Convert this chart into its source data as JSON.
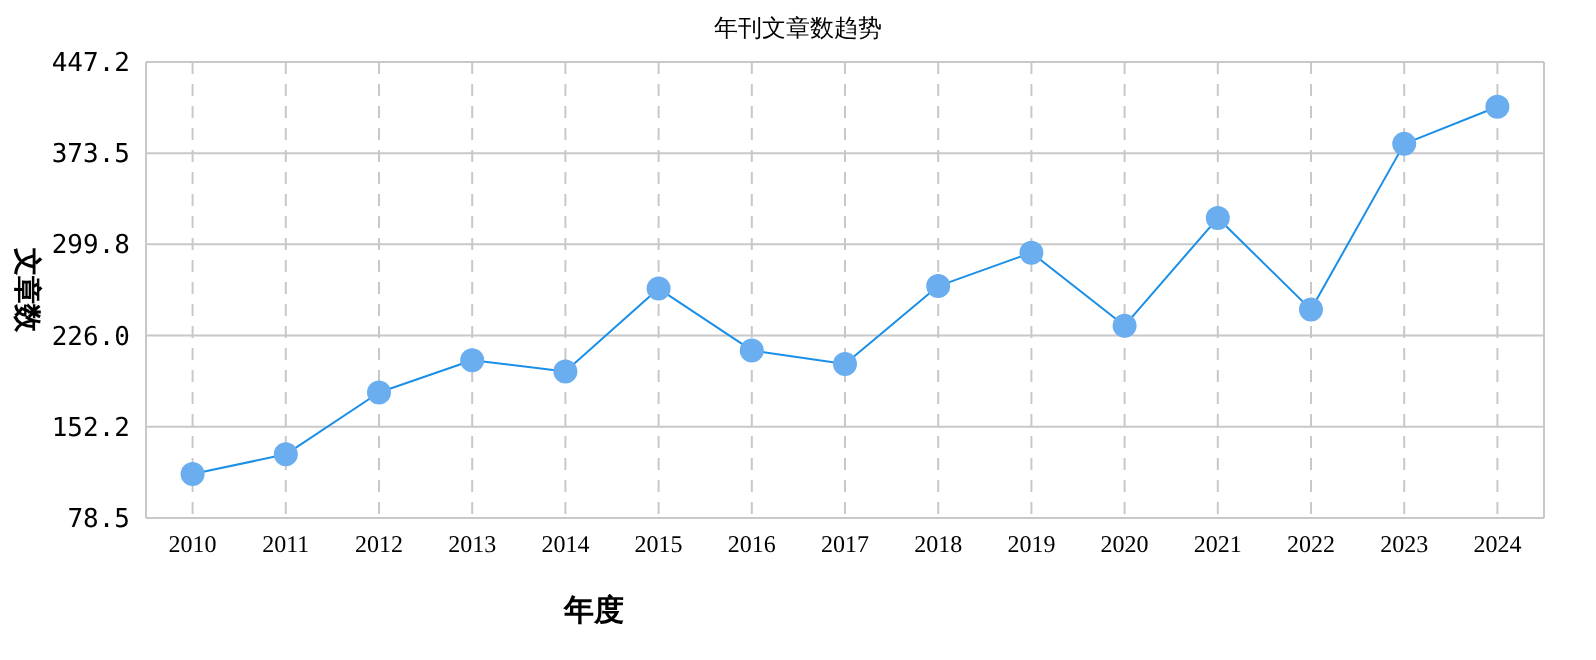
{
  "chart_data": {
    "type": "line",
    "title": "年刊文章数趋势",
    "xlabel": "年度",
    "ylabel": "文章数",
    "categories": [
      "2010",
      "2011",
      "2012",
      "2013",
      "2014",
      "2015",
      "2016",
      "2017",
      "2018",
      "2019",
      "2020",
      "2021",
      "2022",
      "2023",
      "2024"
    ],
    "series": [
      {
        "color": "#1a8fe8",
        "values": [
          114,
          130,
          180,
          206,
          197,
          264,
          214,
          203,
          266,
          293,
          234,
          321,
          247,
          381,
          411
        ]
      }
    ],
    "ylim": [
      78.5,
      447.2
    ],
    "yticks": [
      78.5,
      152.2,
      {
        "value": 226,
        "label": "226.0"
      },
      299.8,
      373.5,
      447.2
    ],
    "grid": true,
    "marker": "circle"
  }
}
